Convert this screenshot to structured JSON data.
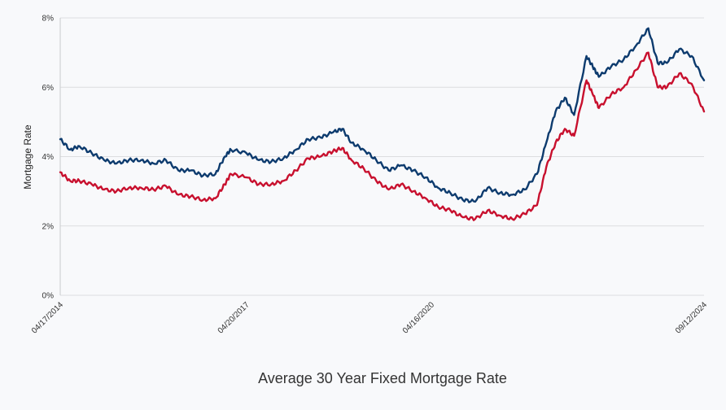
{
  "chart_data": {
    "type": "line",
    "title": "Average 30 Year Fixed Mortgage Rate",
    "ylabel": "Mortgage Rate",
    "xlabel": "",
    "ylim": [
      0,
      8
    ],
    "y_ticks": [
      "0%",
      "2%",
      "4%",
      "6%",
      "8%"
    ],
    "y_tick_values": [
      0,
      2,
      4,
      6,
      8
    ],
    "x_tick_labels": [
      "04/17/2014",
      "04/20/2017",
      "04/16/2020",
      "09/12/2024"
    ],
    "x_tick_values": [
      2014.29,
      2017.3,
      2020.29,
      2024.7
    ],
    "xlim": [
      2014.29,
      2024.7
    ],
    "grid": "horizontal",
    "legend": "none",
    "series": [
      {
        "color": "#0d3b6e",
        "x": [
          2014.29,
          2014.45,
          2014.6,
          2014.8,
          2015.0,
          2015.2,
          2015.4,
          2015.6,
          2015.8,
          2016.0,
          2016.2,
          2016.4,
          2016.6,
          2016.8,
          2016.95,
          2017.05,
          2017.3,
          2017.5,
          2017.7,
          2017.9,
          2018.1,
          2018.3,
          2018.5,
          2018.7,
          2018.85,
          2019.0,
          2019.2,
          2019.4,
          2019.6,
          2019.8,
          2020.0,
          2020.2,
          2020.4,
          2020.6,
          2020.8,
          2021.0,
          2021.2,
          2021.4,
          2021.6,
          2021.8,
          2022.0,
          2022.15,
          2022.3,
          2022.45,
          2022.6,
          2022.8,
          2022.9,
          2023.0,
          2023.2,
          2023.4,
          2023.6,
          2023.8,
          2023.95,
          2024.1,
          2024.3,
          2024.5,
          2024.7
        ],
        "y": [
          4.5,
          4.2,
          4.3,
          4.1,
          3.9,
          3.8,
          3.9,
          3.9,
          3.8,
          3.9,
          3.6,
          3.6,
          3.45,
          3.5,
          4.0,
          4.2,
          4.1,
          3.9,
          3.85,
          3.95,
          4.2,
          4.5,
          4.55,
          4.7,
          4.8,
          4.4,
          4.2,
          3.9,
          3.6,
          3.75,
          3.6,
          3.4,
          3.1,
          2.95,
          2.75,
          2.7,
          3.1,
          2.95,
          2.9,
          3.05,
          3.5,
          4.4,
          5.3,
          5.7,
          5.2,
          6.9,
          6.6,
          6.3,
          6.6,
          6.8,
          7.2,
          7.7,
          6.7,
          6.7,
          7.1,
          6.9,
          6.2
        ]
      },
      {
        "color": "#c8102e",
        "x": [
          2014.29,
          2014.45,
          2014.6,
          2014.8,
          2015.0,
          2015.2,
          2015.4,
          2015.6,
          2015.8,
          2016.0,
          2016.2,
          2016.4,
          2016.6,
          2016.8,
          2016.95,
          2017.05,
          2017.3,
          2017.5,
          2017.7,
          2017.9,
          2018.1,
          2018.3,
          2018.5,
          2018.7,
          2018.85,
          2019.0,
          2019.2,
          2019.4,
          2019.6,
          2019.8,
          2020.0,
          2020.2,
          2020.4,
          2020.6,
          2020.8,
          2021.0,
          2021.2,
          2021.4,
          2021.6,
          2021.8,
          2022.0,
          2022.15,
          2022.3,
          2022.45,
          2022.6,
          2022.8,
          2022.9,
          2023.0,
          2023.2,
          2023.4,
          2023.6,
          2023.8,
          2023.95,
          2024.1,
          2024.3,
          2024.5,
          2024.7
        ],
        "y": [
          3.55,
          3.3,
          3.3,
          3.2,
          3.05,
          3.0,
          3.1,
          3.1,
          3.05,
          3.15,
          2.9,
          2.85,
          2.75,
          2.8,
          3.2,
          3.5,
          3.4,
          3.2,
          3.2,
          3.3,
          3.6,
          3.95,
          4.0,
          4.15,
          4.25,
          3.9,
          3.65,
          3.3,
          3.05,
          3.2,
          3.0,
          2.8,
          2.55,
          2.45,
          2.25,
          2.2,
          2.45,
          2.3,
          2.2,
          2.35,
          2.6,
          3.7,
          4.4,
          4.8,
          4.6,
          6.2,
          5.8,
          5.4,
          5.8,
          6.0,
          6.5,
          7.0,
          6.0,
          6.0,
          6.4,
          6.1,
          5.3
        ]
      }
    ]
  }
}
